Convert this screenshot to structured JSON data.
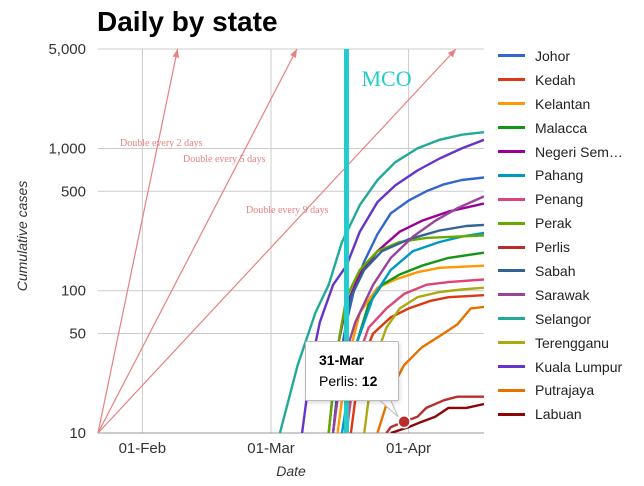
{
  "title": "Daily by state",
  "chart_data": {
    "type": "line",
    "title": "Daily by state",
    "xlabel": "Date",
    "ylabel": "Cumulative cases",
    "yscale": "log",
    "ylim": [
      10,
      5000
    ],
    "xlim": [
      "2020-01-22",
      "2020-04-18"
    ],
    "x_ticks": [
      "01-Feb",
      "01-Mar",
      "01-Apr"
    ],
    "x_tick_dates": [
      "2020-02-01",
      "2020-03-01",
      "2020-04-01"
    ],
    "y_ticks": [
      10,
      50,
      100,
      500,
      1000,
      5000
    ],
    "y_tick_labels": [
      "10",
      "50",
      "100",
      "500",
      "1,000",
      "5,000"
    ],
    "grid": true,
    "legend_position": "right",
    "mco": {
      "label": "MCO",
      "date": "2020-03-18",
      "color": "#22cccc"
    },
    "reference_lines": [
      {
        "label": "Double every 2 days",
        "doubling_days": 2,
        "color": "#e88080"
      },
      {
        "label": "Double every 5 days",
        "doubling_days": 5,
        "color": "#e88080"
      },
      {
        "label": "Double every 9 days",
        "doubling_days": 9,
        "color": "#e88080"
      }
    ],
    "tooltip": {
      "date": "31-Mar",
      "series": "Perlis",
      "value": "12"
    },
    "series": [
      {
        "name": "Johor",
        "color": "#3366cc",
        "points": [
          [
            "2020-03-15",
            10
          ],
          [
            "2020-03-16",
            20
          ],
          [
            "2020-03-18",
            60
          ],
          [
            "2020-03-20",
            110
          ],
          [
            "2020-03-22",
            160
          ],
          [
            "2020-03-25",
            250
          ],
          [
            "2020-03-28",
            350
          ],
          [
            "2020-04-01",
            430
          ],
          [
            "2020-04-05",
            500
          ],
          [
            "2020-04-09",
            560
          ],
          [
            "2020-04-13",
            600
          ],
          [
            "2020-04-18",
            625
          ]
        ]
      },
      {
        "name": "Kedah",
        "color": "#dc3912",
        "points": [
          [
            "2020-03-19",
            10
          ],
          [
            "2020-03-21",
            30
          ],
          [
            "2020-03-24",
            50
          ],
          [
            "2020-03-28",
            65
          ],
          [
            "2020-04-01",
            75
          ],
          [
            "2020-04-06",
            85
          ],
          [
            "2020-04-10",
            90
          ],
          [
            "2020-04-18",
            93
          ]
        ]
      },
      {
        "name": "Kelantan",
        "color": "#ff9900",
        "points": [
          [
            "2020-03-16",
            10
          ],
          [
            "2020-03-18",
            30
          ],
          [
            "2020-03-21",
            70
          ],
          [
            "2020-03-25",
            105
          ],
          [
            "2020-03-29",
            120
          ],
          [
            "2020-04-03",
            135
          ],
          [
            "2020-04-08",
            145
          ],
          [
            "2020-04-18",
            150
          ]
        ]
      },
      {
        "name": "Malacca",
        "color": "#109618",
        "points": [
          [
            "2020-03-18",
            10
          ],
          [
            "2020-03-20",
            40
          ],
          [
            "2020-03-23",
            80
          ],
          [
            "2020-03-26",
            110
          ],
          [
            "2020-03-30",
            130
          ],
          [
            "2020-04-04",
            150
          ],
          [
            "2020-04-10",
            170
          ],
          [
            "2020-04-18",
            185
          ]
        ]
      },
      {
        "name": "Negeri Sembilan",
        "color": "#990099",
        "points": [
          [
            "2020-03-14",
            10
          ],
          [
            "2020-03-16",
            40
          ],
          [
            "2020-03-18",
            80
          ],
          [
            "2020-03-21",
            130
          ],
          [
            "2020-03-25",
            190
          ],
          [
            "2020-03-30",
            260
          ],
          [
            "2020-04-04",
            310
          ],
          [
            "2020-04-10",
            360
          ],
          [
            "2020-04-18",
            410
          ]
        ]
      },
      {
        "name": "Pahang",
        "color": "#0099c6",
        "points": [
          [
            "2020-03-17",
            10
          ],
          [
            "2020-03-20",
            40
          ],
          [
            "2020-03-24",
            90
          ],
          [
            "2020-03-28",
            140
          ],
          [
            "2020-04-02",
            190
          ],
          [
            "2020-04-08",
            220
          ],
          [
            "2020-04-13",
            240
          ],
          [
            "2020-04-18",
            255
          ]
        ]
      },
      {
        "name": "Penang",
        "color": "#dd4477",
        "points": [
          [
            "2020-03-18",
            10
          ],
          [
            "2020-03-20",
            30
          ],
          [
            "2020-03-23",
            55
          ],
          [
            "2020-03-27",
            75
          ],
          [
            "2020-03-31",
            95
          ],
          [
            "2020-04-05",
            110
          ],
          [
            "2020-04-10",
            115
          ],
          [
            "2020-04-18",
            120
          ]
        ]
      },
      {
        "name": "Perak",
        "color": "#66aa00",
        "points": [
          [
            "2020-03-14",
            10
          ],
          [
            "2020-03-16",
            40
          ],
          [
            "2020-03-18",
            90
          ],
          [
            "2020-03-21",
            140
          ],
          [
            "2020-03-25",
            190
          ],
          [
            "2020-03-30",
            220
          ],
          [
            "2020-04-05",
            235
          ],
          [
            "2020-04-12",
            240
          ],
          [
            "2020-04-18",
            245
          ]
        ]
      },
      {
        "name": "Perlis",
        "color": "#b82e2e",
        "points": [
          [
            "2020-03-27",
            10
          ],
          [
            "2020-03-28",
            11
          ],
          [
            "2020-03-31",
            12
          ],
          [
            "2020-04-03",
            13
          ],
          [
            "2020-04-05",
            15
          ],
          [
            "2020-04-09",
            17
          ],
          [
            "2020-04-12",
            18
          ],
          [
            "2020-04-18",
            18
          ]
        ]
      },
      {
        "name": "Sabah",
        "color": "#316395",
        "points": [
          [
            "2020-03-15",
            10
          ],
          [
            "2020-03-17",
            40
          ],
          [
            "2020-03-19",
            90
          ],
          [
            "2020-03-22",
            140
          ],
          [
            "2020-03-26",
            190
          ],
          [
            "2020-04-01",
            230
          ],
          [
            "2020-04-08",
            265
          ],
          [
            "2020-04-14",
            285
          ],
          [
            "2020-04-18",
            290
          ]
        ]
      },
      {
        "name": "Sarawak",
        "color": "#994499",
        "points": [
          [
            "2020-03-15",
            10
          ],
          [
            "2020-03-17",
            30
          ],
          [
            "2020-03-20",
            60
          ],
          [
            "2020-03-24",
            110
          ],
          [
            "2020-03-28",
            170
          ],
          [
            "2020-04-02",
            240
          ],
          [
            "2020-04-07",
            310
          ],
          [
            "2020-04-12",
            380
          ],
          [
            "2020-04-18",
            460
          ]
        ]
      },
      {
        "name": "Selangor",
        "color": "#22aa99",
        "points": [
          [
            "2020-03-03",
            10
          ],
          [
            "2020-03-07",
            30
          ],
          [
            "2020-03-11",
            70
          ],
          [
            "2020-03-14",
            110
          ],
          [
            "2020-03-17",
            220
          ],
          [
            "2020-03-21",
            400
          ],
          [
            "2020-03-25",
            600
          ],
          [
            "2020-03-29",
            800
          ],
          [
            "2020-04-03",
            1000
          ],
          [
            "2020-04-08",
            1150
          ],
          [
            "2020-04-13",
            1250
          ],
          [
            "2020-04-18",
            1300
          ]
        ]
      },
      {
        "name": "Terengganu",
        "color": "#aaaa11",
        "points": [
          [
            "2020-03-22",
            10
          ],
          [
            "2020-03-24",
            30
          ],
          [
            "2020-03-27",
            55
          ],
          [
            "2020-03-30",
            75
          ],
          [
            "2020-04-03",
            90
          ],
          [
            "2020-04-08",
            98
          ],
          [
            "2020-04-13",
            102
          ],
          [
            "2020-04-18",
            105
          ]
        ]
      },
      {
        "name": "Kuala Lumpur",
        "color": "#6633cc",
        "points": [
          [
            "2020-03-08",
            10
          ],
          [
            "2020-03-10",
            30
          ],
          [
            "2020-03-12",
            60
          ],
          [
            "2020-03-15",
            110
          ],
          [
            "2020-03-18",
            150
          ],
          [
            "2020-03-21",
            260
          ],
          [
            "2020-03-25",
            420
          ],
          [
            "2020-03-29",
            550
          ],
          [
            "2020-04-03",
            700
          ],
          [
            "2020-04-08",
            850
          ],
          [
            "2020-04-13",
            1000
          ],
          [
            "2020-04-18",
            1150
          ]
        ]
      },
      {
        "name": "Putrajaya",
        "color": "#e67300",
        "points": [
          [
            "2020-03-25",
            10
          ],
          [
            "2020-03-28",
            20
          ],
          [
            "2020-03-31",
            30
          ],
          [
            "2020-04-04",
            40
          ],
          [
            "2020-04-08",
            48
          ],
          [
            "2020-04-12",
            58
          ],
          [
            "2020-04-15",
            75
          ],
          [
            "2020-04-18",
            77
          ]
        ]
      },
      {
        "name": "Labuan",
        "color": "#8b0707",
        "points": [
          [
            "2020-03-28",
            10
          ],
          [
            "2020-04-01",
            11
          ],
          [
            "2020-04-04",
            12
          ],
          [
            "2020-04-07",
            13
          ],
          [
            "2020-04-10",
            15
          ],
          [
            "2020-04-14",
            15
          ],
          [
            "2020-04-18",
            16
          ]
        ]
      }
    ],
    "legend_labels": [
      "Johor",
      "Kedah",
      "Kelantan",
      "Malacca",
      "Negeri Sem…",
      "Pahang",
      "Penang",
      "Perak",
      "Perlis",
      "Sabah",
      "Sarawak",
      "Selangor",
      "Terengganu",
      "Kuala Lumpur",
      "Putrajaya",
      "Labuan"
    ]
  }
}
